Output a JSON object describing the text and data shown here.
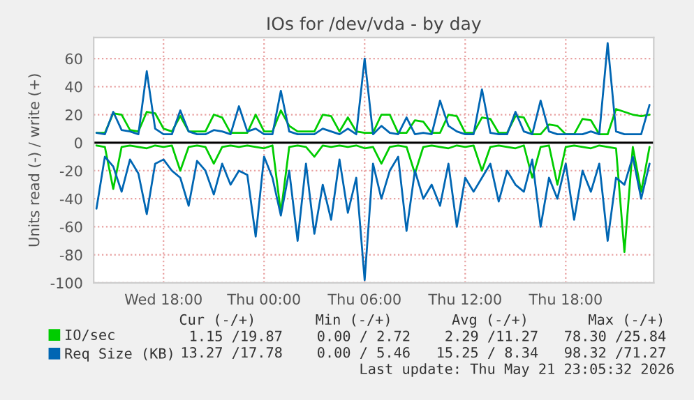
{
  "chart_data": {
    "type": "line",
    "title": "IOs for /dev/vda - by day",
    "ylabel": "Units read (-) / write (+)",
    "x": [
      "2026-05-20T14:00",
      "2026-05-20T14:30",
      "2026-05-20T15:00",
      "2026-05-20T15:30",
      "2026-05-20T16:00",
      "2026-05-20T16:30",
      "2026-05-20T17:00",
      "2026-05-20T17:30",
      "2026-05-20T18:00",
      "2026-05-20T18:30",
      "2026-05-20T19:00",
      "2026-05-20T19:30",
      "2026-05-20T20:00",
      "2026-05-20T20:30",
      "2026-05-20T21:00",
      "2026-05-20T21:30",
      "2026-05-20T22:00",
      "2026-05-20T22:30",
      "2026-05-20T23:00",
      "2026-05-20T23:30",
      "2026-05-21T00:00",
      "2026-05-21T00:30",
      "2026-05-21T01:00",
      "2026-05-21T01:30",
      "2026-05-21T02:00",
      "2026-05-21T02:30",
      "2026-05-21T03:00",
      "2026-05-21T03:30",
      "2026-05-21T04:00",
      "2026-05-21T04:30",
      "2026-05-21T05:00",
      "2026-05-21T05:30",
      "2026-05-21T06:00",
      "2026-05-21T06:30",
      "2026-05-21T07:00",
      "2026-05-21T07:30",
      "2026-05-21T08:00",
      "2026-05-21T08:30",
      "2026-05-21T09:00",
      "2026-05-21T09:30",
      "2026-05-21T10:00",
      "2026-05-21T10:30",
      "2026-05-21T11:00",
      "2026-05-21T11:30",
      "2026-05-21T12:00",
      "2026-05-21T12:30",
      "2026-05-21T13:00",
      "2026-05-21T13:30",
      "2026-05-21T14:00",
      "2026-05-21T14:30",
      "2026-05-21T15:00",
      "2026-05-21T15:30",
      "2026-05-21T16:00",
      "2026-05-21T16:30",
      "2026-05-21T17:00",
      "2026-05-21T17:30",
      "2026-05-21T18:00",
      "2026-05-21T18:30",
      "2026-05-21T19:00",
      "2026-05-21T19:30",
      "2026-05-21T20:00",
      "2026-05-21T20:30",
      "2026-05-21T21:00",
      "2026-05-21T21:30",
      "2026-05-21T22:00",
      "2026-05-21T22:30",
      "2026-05-21T23:00"
    ],
    "series": [
      {
        "name": "IO/sec",
        "color": "#00cc00",
        "values": [
          7,
          7,
          21,
          20,
          9,
          8,
          22,
          21,
          10,
          8,
          19,
          8,
          8,
          8,
          20,
          18,
          7,
          7,
          7,
          20,
          8,
          8,
          23,
          12,
          8,
          8,
          8,
          20,
          19,
          8,
          18,
          8,
          7,
          7,
          20,
          20,
          7,
          7,
          16,
          15,
          7,
          7,
          20,
          19,
          7,
          7,
          18,
          17,
          7,
          7,
          19,
          18,
          6,
          6,
          13,
          12,
          6,
          6,
          17,
          16,
          6,
          6,
          24,
          22,
          20,
          19,
          20
        ]
      },
      {
        "color": "#00cc00",
        "values": [
          -2,
          -3,
          -33,
          -3,
          -2,
          -3,
          -4,
          -2,
          -3,
          -2,
          -20,
          -3,
          -2,
          -3,
          -15,
          -3,
          -2,
          -3,
          -2,
          -3,
          -4,
          -2,
          -50,
          -3,
          -2,
          -3,
          -10,
          -2,
          -3,
          -2,
          -3,
          -2,
          -4,
          -3,
          -15,
          -3,
          -2,
          -3,
          -22,
          -3,
          -2,
          -3,
          -4,
          -2,
          -3,
          -2,
          -20,
          -3,
          -2,
          -3,
          -4,
          -2,
          -25,
          -3,
          -2,
          -30,
          -3,
          -2,
          -3,
          -4,
          -2,
          -3,
          -4,
          -78,
          -3,
          -35,
          -3
        ]
      },
      {
        "name": "Req Size (KB)",
        "color": "#0066b3",
        "values": [
          7,
          6,
          22,
          9,
          8,
          6,
          51,
          10,
          6,
          6,
          23,
          8,
          6,
          6,
          9,
          8,
          6,
          26,
          8,
          10,
          6,
          6,
          37,
          8,
          6,
          6,
          6,
          10,
          8,
          6,
          10,
          6,
          60,
          6,
          12,
          7,
          6,
          18,
          6,
          7,
          6,
          30,
          12,
          8,
          6,
          6,
          38,
          7,
          6,
          6,
          22,
          8,
          6,
          30,
          8,
          6,
          6,
          6,
          6,
          8,
          6,
          71,
          8,
          6,
          6,
          6,
          27
        ]
      },
      {
        "color": "#0066b3",
        "values": [
          -47,
          -10,
          -17,
          -35,
          -12,
          -22,
          -51,
          -15,
          -12,
          -20,
          -25,
          -45,
          -13,
          -20,
          -37,
          -15,
          -30,
          -20,
          -23,
          -67,
          -10,
          -25,
          -52,
          -20,
          -70,
          -15,
          -65,
          -30,
          -55,
          -12,
          -50,
          -25,
          -98,
          -15,
          -40,
          -20,
          -10,
          -63,
          -20,
          -40,
          -30,
          -45,
          -15,
          -60,
          -25,
          -35,
          -25,
          -15,
          -42,
          -20,
          -30,
          -35,
          -12,
          -60,
          -25,
          -40,
          -15,
          -55,
          -20,
          -35,
          -15,
          -70,
          -25,
          -30,
          -10,
          -40,
          -15
        ]
      }
    ],
    "xlim": [
      "2026-05-20T13:50",
      "2026-05-21T23:15"
    ],
    "xticks": [
      {
        "value": "2026-05-20T18:00",
        "label": "Wed 18:00"
      },
      {
        "value": "2026-05-21T00:00",
        "label": "Thu 00:00"
      },
      {
        "value": "2026-05-21T06:00",
        "label": "Thu 06:00"
      },
      {
        "value": "2026-05-21T12:00",
        "label": "Thu 12:00"
      },
      {
        "value": "2026-05-21T18:00",
        "label": "Thu 18:00"
      }
    ],
    "ylim": [
      -100,
      75
    ],
    "yticks": [
      -100,
      -80,
      -60,
      -40,
      -20,
      0,
      20,
      40,
      60
    ],
    "ref_lines": [
      {
        "axis": "y",
        "value": 0,
        "color": "#000000"
      }
    ],
    "grid": true,
    "legend": "bottom",
    "marker": "none",
    "line_style": "solid",
    "annotations": [
      "Cur (-/+)       Min (-/+)       Avg (-/+)       Max (-/+)",
      "1.15 /19.87    0.00 / 2.72    2.29 /11.27   78.30 /25.84",
      "13.27 /17.78    0.00 / 5.46   15.25 / 8.34   98.32 /71.27",
      "Last update: Thu May 21 23:05:32 2026"
    ]
  }
}
